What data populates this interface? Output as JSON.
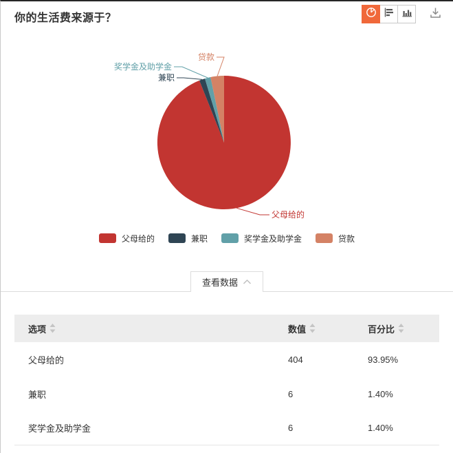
{
  "header": {
    "title": "你的生活费来源于？"
  },
  "toolbar": {
    "active_color": "#f0683a",
    "buttons": [
      {
        "name": "pie-chart",
        "icon": "pie-chart-icon",
        "active": true
      },
      {
        "name": "horizontal-bar-chart",
        "icon": "horizontal-bar-chart-icon",
        "active": false
      },
      {
        "name": "column-chart",
        "icon": "column-chart-icon",
        "active": false
      }
    ],
    "download": {
      "icon": "download-icon"
    }
  },
  "chart_data": {
    "type": "pie",
    "title": "你的生活费来源于？",
    "legend_position": "bottom",
    "legend": [
      "父母给的",
      "兼职",
      "奖学金及助学金",
      "贷款"
    ],
    "series": [
      {
        "name": "父母给的",
        "value": 404,
        "percent": 93.95,
        "color": "#c23531"
      },
      {
        "name": "兼职",
        "value": 6,
        "percent": 1.4,
        "color": "#2f4554"
      },
      {
        "name": "奖学金及助学金",
        "value": 6,
        "percent": 1.4,
        "color": "#61a0a8"
      },
      {
        "name": "贷款",
        "percent": 3.25,
        "color": "#d48265"
      }
    ]
  },
  "data_panel": {
    "toggle_label": "查看数据",
    "toggle_icon": "chevron-up-icon"
  },
  "table": {
    "columns": [
      "选项",
      "数值",
      "百分比"
    ],
    "rows": [
      {
        "option": "父母给的",
        "value": "404",
        "percent": "93.95%"
      },
      {
        "option": "兼职",
        "value": "6",
        "percent": "1.40%"
      },
      {
        "option": "奖学金及助学金",
        "value": "6",
        "percent": "1.40%"
      }
    ]
  }
}
